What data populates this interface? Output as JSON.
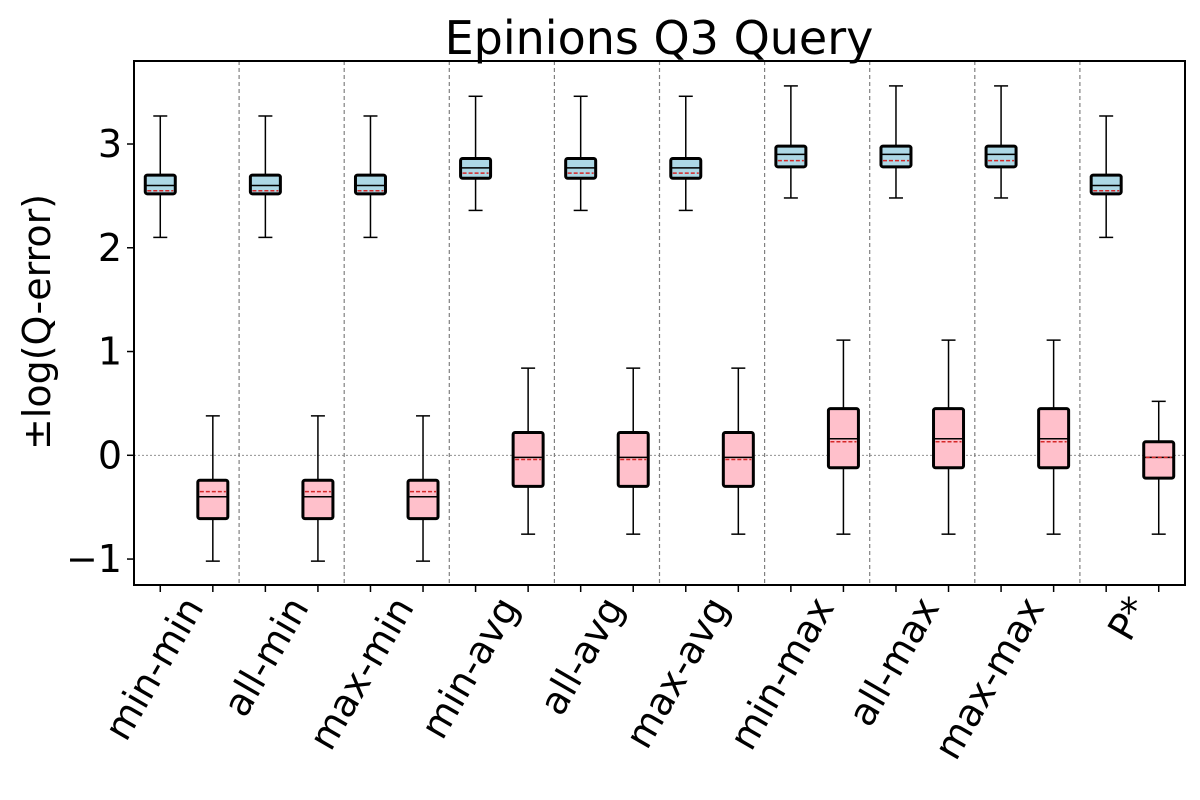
{
  "chart_data": {
    "type": "box",
    "title": "Epinions Q3 Query",
    "ylabel": "±log(Q-error)",
    "xlabel": "",
    "ylim": [
      -1.25,
      3.8
    ],
    "yticks": [
      -1,
      0,
      1,
      2,
      3
    ],
    "ytick_labels": [
      "−1",
      "0",
      "1",
      "2",
      "3"
    ],
    "grid": false,
    "categories": [
      "min-min",
      "all-min",
      "max-min",
      "min-avg",
      "all-avg",
      "max-avg",
      "min-max",
      "all-max",
      "max-max",
      "P*"
    ],
    "colors": {
      "overestimate_fill": "#add8e6",
      "underestimate_fill": "#ffc0cb",
      "mean_line": "#d62728",
      "median_line": "#000000",
      "separator": "#808080",
      "zero_line": "#808080"
    },
    "series": [
      {
        "boxes": [
          {
            "whislo": 2.1,
            "q1": 2.52,
            "med": 2.6,
            "mean": 2.55,
            "q3": 2.7,
            "whishi": 3.27
          },
          {
            "whislo": 2.1,
            "q1": 2.52,
            "med": 2.6,
            "mean": 2.55,
            "q3": 2.7,
            "whishi": 3.27
          },
          {
            "whislo": 2.1,
            "q1": 2.52,
            "med": 2.6,
            "mean": 2.55,
            "q3": 2.7,
            "whishi": 3.27
          },
          {
            "whislo": 2.36,
            "q1": 2.67,
            "med": 2.77,
            "mean": 2.72,
            "q3": 2.86,
            "whishi": 3.46
          },
          {
            "whislo": 2.36,
            "q1": 2.67,
            "med": 2.77,
            "mean": 2.72,
            "q3": 2.86,
            "whishi": 3.46
          },
          {
            "whislo": 2.36,
            "q1": 2.67,
            "med": 2.77,
            "mean": 2.72,
            "q3": 2.86,
            "whishi": 3.46
          },
          {
            "whislo": 2.48,
            "q1": 2.78,
            "med": 2.9,
            "mean": 2.84,
            "q3": 2.98,
            "whishi": 3.56
          },
          {
            "whislo": 2.48,
            "q1": 2.78,
            "med": 2.9,
            "mean": 2.84,
            "q3": 2.98,
            "whishi": 3.56
          },
          {
            "whislo": 2.48,
            "q1": 2.78,
            "med": 2.9,
            "mean": 2.84,
            "q3": 2.98,
            "whishi": 3.56
          },
          {
            "whislo": 2.1,
            "q1": 2.52,
            "med": 2.6,
            "mean": 2.55,
            "q3": 2.7,
            "whishi": 3.27
          }
        ]
      },
      {
        "boxes": [
          {
            "whislo": -1.02,
            "q1": -0.61,
            "med": -0.4,
            "mean": -0.35,
            "q3": -0.24,
            "whishi": 0.38
          },
          {
            "whislo": -1.02,
            "q1": -0.61,
            "med": -0.4,
            "mean": -0.35,
            "q3": -0.24,
            "whishi": 0.38
          },
          {
            "whislo": -1.02,
            "q1": -0.61,
            "med": -0.4,
            "mean": -0.35,
            "q3": -0.24,
            "whishi": 0.38
          },
          {
            "whislo": -0.76,
            "q1": -0.3,
            "med": -0.02,
            "mean": -0.04,
            "q3": 0.22,
            "whishi": 0.84
          },
          {
            "whislo": -0.76,
            "q1": -0.3,
            "med": -0.02,
            "mean": -0.04,
            "q3": 0.22,
            "whishi": 0.84
          },
          {
            "whislo": -0.76,
            "q1": -0.3,
            "med": -0.02,
            "mean": -0.04,
            "q3": 0.22,
            "whishi": 0.84
          },
          {
            "whislo": -0.76,
            "q1": -0.12,
            "med": 0.16,
            "mean": 0.13,
            "q3": 0.45,
            "whishi": 1.11
          },
          {
            "whislo": -0.76,
            "q1": -0.12,
            "med": 0.16,
            "mean": 0.13,
            "q3": 0.45,
            "whishi": 1.11
          },
          {
            "whislo": -0.76,
            "q1": -0.12,
            "med": 0.16,
            "mean": 0.13,
            "q3": 0.45,
            "whishi": 1.11
          },
          {
            "whislo": -0.76,
            "q1": -0.22,
            "med": -0.02,
            "mean": -0.02,
            "q3": 0.13,
            "whishi": 0.52
          }
        ]
      }
    ]
  }
}
